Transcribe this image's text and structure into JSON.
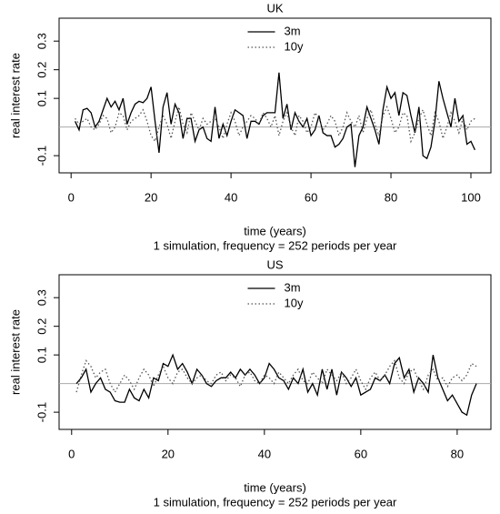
{
  "chart_data": [
    {
      "type": "line",
      "title": "UK",
      "xlabel": "time (years)",
      "subtitle": "1 simulation, frequency = 252 periods per year",
      "ylabel": "real interest rate",
      "x": [
        1,
        2,
        3,
        4,
        5,
        6,
        7,
        8,
        9,
        10,
        11,
        12,
        13,
        14,
        15,
        16,
        17,
        18,
        19,
        20,
        21,
        22,
        23,
        24,
        25,
        26,
        27,
        28,
        29,
        30,
        31,
        32,
        33,
        34,
        35,
        36,
        37,
        38,
        39,
        40,
        41,
        42,
        43,
        44,
        45,
        46,
        47,
        48,
        49,
        50,
        51,
        52,
        53,
        54,
        55,
        56,
        57,
        58,
        59,
        60,
        61,
        62,
        63,
        64,
        65,
        66,
        67,
        68,
        69,
        70,
        71,
        72,
        73,
        74,
        75,
        76,
        77,
        78,
        79,
        80,
        81,
        82,
        83,
        84,
        85,
        86,
        87,
        88,
        89,
        90,
        91,
        92,
        93,
        94,
        95,
        96,
        97,
        98,
        99,
        100,
        101
      ],
      "series": [
        {
          "name": "3m",
          "color": "#000000",
          "dash": "solid",
          "values": [
            0.02,
            -0.01,
            0.06,
            0.065,
            0.05,
            0.0,
            0.02,
            0.06,
            0.1,
            0.07,
            0.09,
            0.06,
            0.1,
            0.01,
            0.05,
            0.08,
            0.09,
            0.085,
            0.1,
            0.14,
            0.02,
            -0.09,
            0.07,
            0.12,
            0.01,
            0.08,
            0.05,
            -0.04,
            0.03,
            0.03,
            -0.05,
            -0.01,
            0.0,
            -0.04,
            -0.05,
            0.07,
            -0.04,
            0.01,
            -0.03,
            0.02,
            0.06,
            0.05,
            0.04,
            -0.04,
            0.02,
            0.02,
            0.01,
            0.04,
            0.05,
            0.05,
            0.05,
            0.19,
            0.03,
            0.08,
            -0.01,
            0.05,
            0.02,
            0.0,
            0.03,
            -0.03,
            -0.01,
            0.04,
            -0.02,
            -0.03,
            -0.03,
            -0.07,
            -0.06,
            -0.04,
            0.0,
            0.01,
            -0.14,
            -0.03,
            0.0,
            0.07,
            0.03,
            -0.01,
            -0.06,
            0.06,
            0.14,
            0.1,
            0.12,
            0.04,
            0.12,
            0.11,
            0.04,
            -0.02,
            0.07,
            -0.1,
            -0.11,
            -0.07,
            0.02,
            0.16,
            0.1,
            0.05,
            0.0,
            0.1,
            0.02,
            0.04,
            -0.06,
            -0.05,
            -0.08
          ]
        },
        {
          "name": "10y",
          "color": "#555555",
          "dash": "dotted",
          "values": [
            0.03,
            0.01,
            0.02,
            0.03,
            0.0,
            -0.01,
            0.01,
            0.04,
            0.03,
            -0.02,
            0.0,
            0.05,
            0.04,
            -0.01,
            0.02,
            0.03,
            0.04,
            0.06,
            0.02,
            -0.03,
            -0.05,
            0.0,
            0.04,
            0.01,
            -0.04,
            0.02,
            0.07,
            0.01,
            -0.02,
            0.05,
            0.02,
            -0.01,
            0.03,
            0.01,
            0.02,
            0.03,
            0.0,
            -0.04,
            0.01,
            0.05,
            0.02,
            -0.03,
            0.0,
            0.02,
            0.04,
            0.03,
            0.01,
            0.05,
            0.03,
            0.0,
            0.04,
            -0.03,
            0.02,
            0.05,
            0.0,
            -0.03,
            0.04,
            0.02,
            -0.02,
            0.0,
            0.05,
            0.03,
            -0.01,
            0.01,
            0.04,
            0.02,
            -0.03,
            0.0,
            0.05,
            0.02,
            0.0,
            0.04,
            -0.02,
            0.03,
            0.06,
            0.01,
            -0.03,
            0.04,
            0.07,
            0.03,
            -0.02,
            0.0,
            0.05,
            0.04,
            -0.05,
            -0.02,
            0.03,
            0.06,
            0.01,
            -0.03,
            0.05,
            0.02,
            -0.04,
            0.0,
            0.05,
            0.02,
            -0.02,
            0.03,
            -0.01,
            0.02,
            0.03
          ]
        }
      ],
      "xlim": [
        -3,
        105
      ],
      "ylim": [
        -0.16,
        0.38
      ],
      "xticks": [
        0,
        20,
        40,
        60,
        80,
        100
      ],
      "yticks": [
        -0.1,
        0.1,
        0.2,
        0.3
      ],
      "hline": 0,
      "legend": "top"
    },
    {
      "type": "line",
      "title": "US",
      "xlabel": "time (years)",
      "subtitle": "1 simulation, frequency = 252 periods per year",
      "ylabel": "real interest rate",
      "x": [
        1,
        2,
        3,
        4,
        5,
        6,
        7,
        8,
        9,
        10,
        11,
        12,
        13,
        14,
        15,
        16,
        17,
        18,
        19,
        20,
        21,
        22,
        23,
        24,
        25,
        26,
        27,
        28,
        29,
        30,
        31,
        32,
        33,
        34,
        35,
        36,
        37,
        38,
        39,
        40,
        41,
        42,
        43,
        44,
        45,
        46,
        47,
        48,
        49,
        50,
        51,
        52,
        53,
        54,
        55,
        56,
        57,
        58,
        59,
        60,
        61,
        62,
        63,
        64,
        65,
        66,
        67,
        68,
        69,
        70,
        71,
        72,
        73,
        74,
        75,
        76,
        77,
        78,
        79,
        80,
        81,
        82,
        83,
        84
      ],
      "series": [
        {
          "name": "3m",
          "color": "#000000",
          "dash": "solid",
          "values": [
            0.0,
            0.02,
            0.05,
            -0.03,
            0.0,
            0.02,
            -0.02,
            -0.03,
            -0.06,
            -0.065,
            -0.065,
            -0.02,
            -0.05,
            -0.06,
            -0.02,
            -0.05,
            0.02,
            0.01,
            0.07,
            0.06,
            0.1,
            0.05,
            0.07,
            0.04,
            0.0,
            0.05,
            0.03,
            0.0,
            -0.01,
            0.01,
            0.02,
            0.02,
            0.04,
            0.02,
            0.05,
            0.03,
            0.05,
            0.03,
            0.0,
            0.02,
            0.07,
            0.05,
            0.02,
            0.01,
            -0.02,
            0.02,
            0.0,
            0.05,
            -0.03,
            0.0,
            -0.04,
            0.05,
            -0.02,
            0.05,
            -0.04,
            0.04,
            0.02,
            -0.01,
            0.02,
            -0.04,
            -0.03,
            -0.02,
            0.02,
            0.01,
            0.03,
            0.0,
            0.07,
            0.09,
            0.02,
            0.05,
            -0.03,
            0.02,
            0.0,
            -0.03,
            0.1,
            0.02,
            -0.02,
            -0.06,
            -0.04,
            -0.07,
            -0.1,
            -0.11,
            -0.04,
            0.0
          ]
        },
        {
          "name": "10y",
          "color": "#555555",
          "dash": "dotted",
          "values": [
            -0.03,
            0.03,
            0.08,
            0.06,
            0.02,
            0.04,
            0.05,
            0.0,
            -0.03,
            0.0,
            0.03,
            0.01,
            -0.02,
            0.02,
            0.05,
            0.03,
            -0.01,
            0.03,
            0.06,
            0.02,
            0.0,
            0.04,
            0.05,
            0.02,
            0.0,
            0.02,
            0.03,
            0.01,
            0.0,
            0.03,
            0.04,
            0.01,
            0.03,
            0.02,
            -0.01,
            0.03,
            0.04,
            0.01,
            0.0,
            0.03,
            0.02,
            0.0,
            0.04,
            0.02,
            0.0,
            0.03,
            0.05,
            0.01,
            0.0,
            0.04,
            0.02,
            0.0,
            0.05,
            0.03,
            0.01,
            0.04,
            0.0,
            0.02,
            0.05,
            0.01,
            -0.02,
            0.02,
            0.04,
            0.01,
            0.03,
            0.06,
            0.08,
            0.02,
            0.0,
            0.04,
            0.05,
            0.01,
            -0.02,
            0.03,
            0.05,
            0.01,
            0.02,
            -0.01,
            0.02,
            0.03,
            0.01,
            0.03,
            0.07,
            0.06
          ]
        }
      ],
      "xlim": [
        -2.6,
        87
      ],
      "ylim": [
        -0.16,
        0.38
      ],
      "xticks": [
        0,
        20,
        40,
        60,
        80
      ],
      "yticks": [
        -0.1,
        0.1,
        0.2,
        0.3
      ],
      "hline": 0,
      "legend": "top"
    }
  ]
}
